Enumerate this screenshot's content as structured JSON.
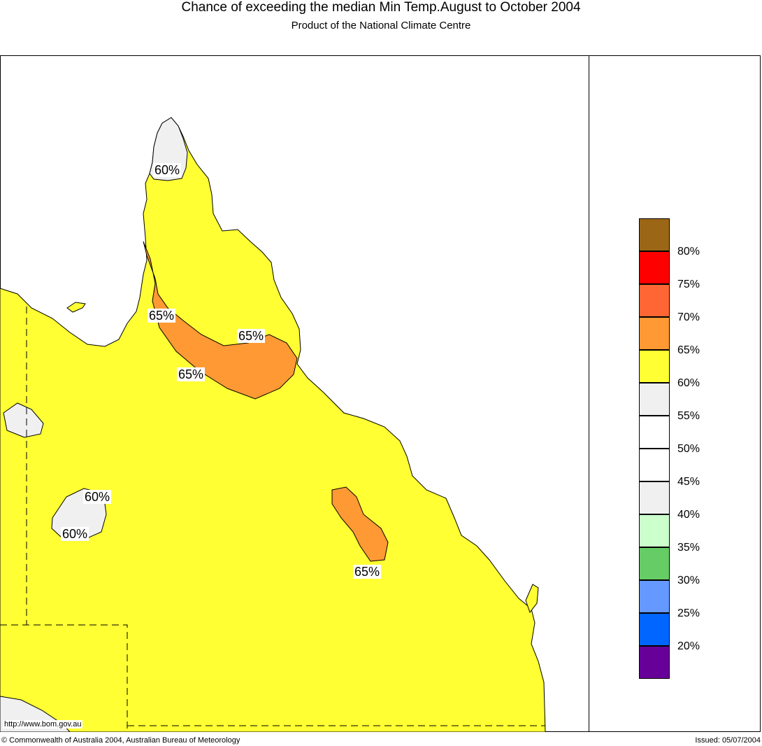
{
  "title": "Chance of exceeding the median Min Temp.August to October 2004",
  "subtitle": "Product of the National Climate Centre",
  "map": {
    "labels": [
      "60%",
      "65%",
      "65%",
      "65%",
      "60%",
      "60%",
      "65%"
    ],
    "url": "http://www.bom.gov.au"
  },
  "legend": {
    "colors": [
      "#9b6616",
      "#ff0000",
      "#ff6633",
      "#ff9933",
      "#ffff33",
      "#f0f0f0",
      "#ffffff",
      "#ffffff",
      "#f0f0f0",
      "#ccffcc",
      "#66cc66",
      "#6699ff",
      "#0066ff",
      "#660099"
    ],
    "labels": [
      "80%",
      "75%",
      "70%",
      "65%",
      "60%",
      "55%",
      "50%",
      "45%",
      "40%",
      "35%",
      "30%",
      "25%",
      "20%"
    ]
  },
  "footer": {
    "copyright": "© Commonwealth of Australia 2004, Australian Bureau of Meteorology",
    "issued": "Issued: 05/07/2004"
  }
}
